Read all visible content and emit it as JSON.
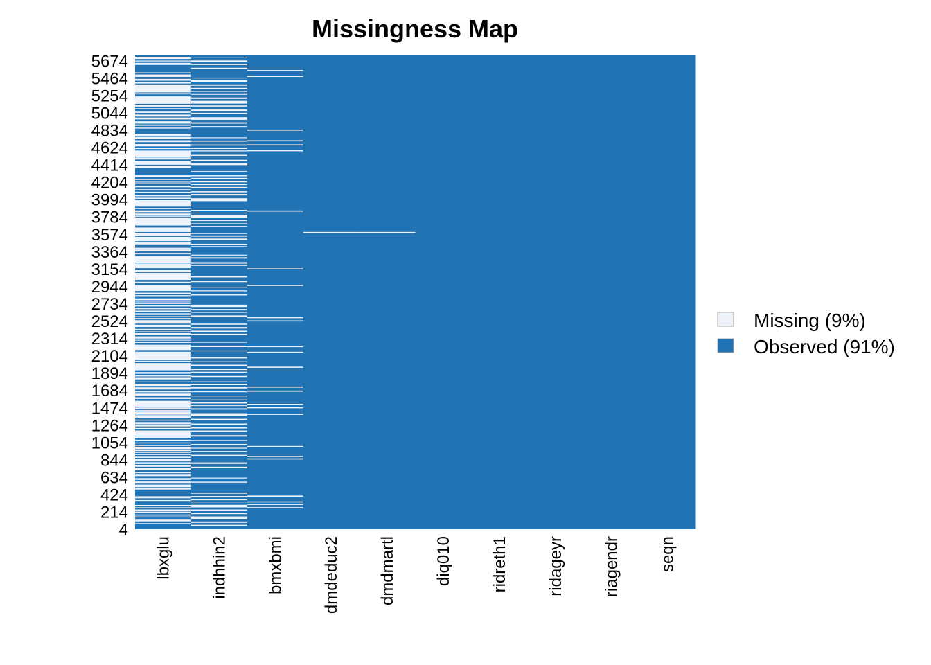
{
  "chart_data": {
    "type": "heatmap",
    "title": "Missingness Map",
    "xlabel": "",
    "ylabel": "",
    "variables": [
      "lbxglu",
      "indhhin2",
      "bmxbmi",
      "dmdeduc2",
      "dmdmartl",
      "diq010",
      "ridreth1",
      "ridageyr",
      "riagendr",
      "seqn"
    ],
    "y_tick_labels": [
      "4",
      "214",
      "424",
      "634",
      "844",
      "1054",
      "1264",
      "1474",
      "1684",
      "1894",
      "2104",
      "2314",
      "2524",
      "2734",
      "2944",
      "3154",
      "3364",
      "3574",
      "3784",
      "3994",
      "4204",
      "4414",
      "4624",
      "4834",
      "5044",
      "5254",
      "5464",
      "5674"
    ],
    "ylim": [
      1,
      5735
    ],
    "legend": {
      "placement": "right",
      "entries": [
        {
          "label": "Missing (9%)",
          "color": "#EEF2FB"
        },
        {
          "label": "Observed (91%)",
          "color": "#2273B3"
        }
      ]
    },
    "colors": {
      "missing": "#EEF2FB",
      "observed": "#2273B3"
    },
    "missing_pct": 9,
    "observed_pct": 91,
    "missing_rows": {
      "lbxglu": "dense",
      "indhhin2": "moderate",
      "bmxbmi": [
        260,
        300,
        330,
        400,
        850,
        880,
        1000,
        1390,
        1470,
        1510,
        1670,
        1720,
        1960,
        2140,
        2210,
        2520,
        2560,
        2950,
        3150,
        3850,
        4580,
        4650,
        4700,
        4830,
        5480,
        5550
      ],
      "dmdeduc2": [
        3590
      ],
      "dmdmartl": [
        3590
      ],
      "diq010": [],
      "ridreth1": [],
      "ridageyr": [],
      "riagendr": [],
      "seqn": []
    }
  }
}
